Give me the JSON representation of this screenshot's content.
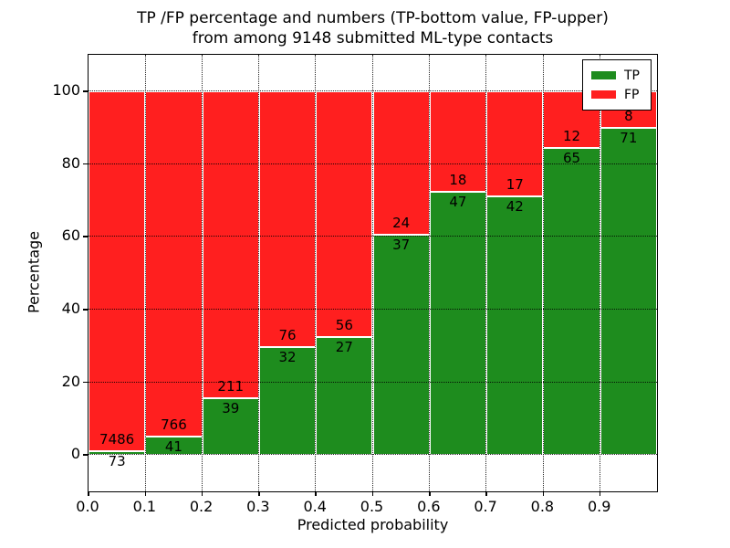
{
  "title": {
    "line1": "TP /FP percentage and numbers (TP-bottom value, FP-upper)",
    "line2": "from among 9148 submitted ML-type contacts"
  },
  "axes": {
    "xlabel": "Predicted probability",
    "ylabel": "Percentage",
    "x_tick_labels": [
      "0.0",
      "0.1",
      "0.2",
      "0.3",
      "0.4",
      "0.5",
      "0.6",
      "0.7",
      "0.8",
      "0.9"
    ],
    "y_tick_labels": [
      "0",
      "20",
      "40",
      "60",
      "80",
      "100"
    ],
    "y_tick_values": [
      0,
      20,
      40,
      60,
      80,
      100
    ]
  },
  "legend": {
    "items": [
      {
        "label": "TP",
        "color": "#1e8c1e"
      },
      {
        "label": "FP",
        "color": "#ff1f1f"
      }
    ],
    "position": "upper right"
  },
  "colors": {
    "tp_green": "#1e8c1e",
    "fp_red": "#ff1f1f",
    "bar_edge": "#ffffff",
    "grid": "#000000"
  },
  "chart_data": {
    "type": "bar",
    "stacked": true,
    "normalized_to_percent": true,
    "bin_starts": [
      0.0,
      0.1,
      0.2,
      0.3,
      0.4,
      0.5,
      0.6,
      0.7,
      0.8,
      0.9
    ],
    "bin_width": 0.1,
    "series": [
      {
        "name": "TP",
        "color": "#1e8c1e",
        "counts": [
          73,
          41,
          39,
          32,
          27,
          37,
          47,
          42,
          65,
          71
        ],
        "percent": [
          0.97,
          5.08,
          15.6,
          29.63,
          32.53,
          60.66,
          72.31,
          71.19,
          84.42,
          89.87
        ]
      },
      {
        "name": "FP",
        "color": "#ff1f1f",
        "counts": [
          7486,
          766,
          211,
          76,
          56,
          24,
          18,
          17,
          12,
          8
        ],
        "percent": [
          99.03,
          94.92,
          84.4,
          70.37,
          67.47,
          39.34,
          27.69,
          28.81,
          15.58,
          10.13
        ]
      }
    ],
    "total_contacts": 9148,
    "title": "TP /FP percentage and numbers (TP-bottom value, FP-upper) from among 9148 submitted ML-type contacts",
    "xlabel": "Predicted probability",
    "ylabel": "Percentage",
    "xlim": [
      0.0,
      1.0
    ],
    "ylim": [
      -10,
      110
    ],
    "grid": "dotted black, x ticks 0.0-0.9 step 0.1, y ticks 0-100 step 20",
    "legend_position": "upper right",
    "bar_labels": "TP count just below segment boundary, FP count just above"
  }
}
